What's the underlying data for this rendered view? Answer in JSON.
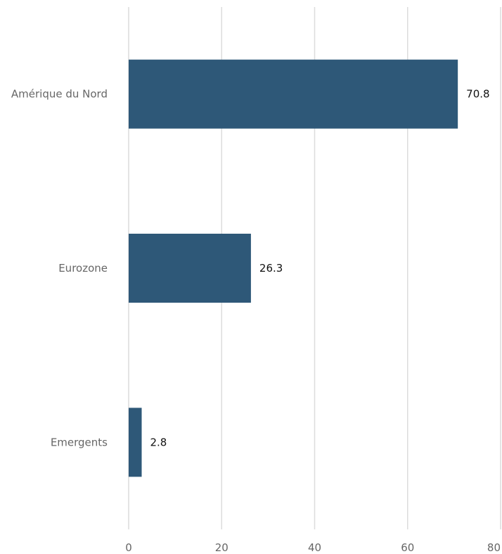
{
  "chart_data": {
    "type": "bar",
    "orientation": "horizontal",
    "title": "",
    "xlabel": "",
    "ylabel": "",
    "categories": [
      "Amérique du Nord",
      "Eurozone",
      "Emergents"
    ],
    "values": [
      70.8,
      26.3,
      2.8
    ],
    "value_labels": [
      "70.8",
      "26.3",
      "2.8"
    ],
    "xlim": [
      0,
      80
    ],
    "x_ticks": [
      0,
      20,
      40,
      60,
      80
    ],
    "x_tick_labels": [
      "0",
      "20",
      "40",
      "60",
      "80"
    ],
    "grid": "vertical",
    "legend": "none",
    "bar_color": "#2e5878"
  }
}
